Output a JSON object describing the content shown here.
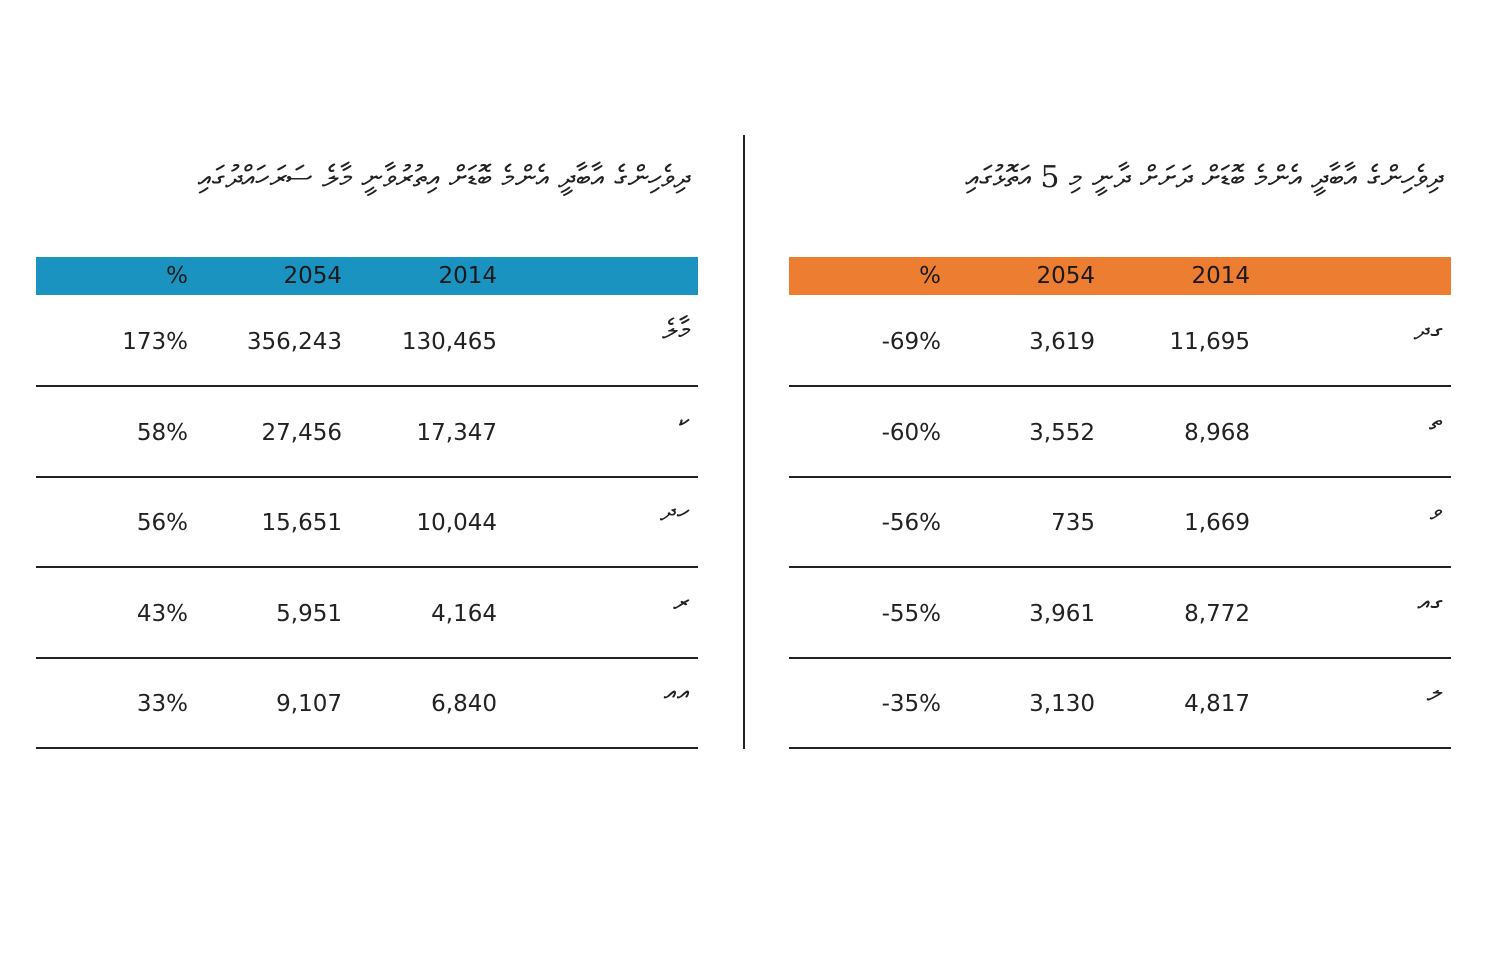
{
  "tables": [
    {
      "title": "ދިވެހިންގެ އާބާދީ އެންމެ ބޮޑަށް އިތުރުވާނީ މާލެ ސަރަހައްދުގައި",
      "header_color": "#1a93c1",
      "header": [
        "2014",
        "2054",
        "%"
      ],
      "rows": [
        [
          "މާލެ",
          "130,465",
          "356,243",
          "173%"
        ],
        [
          "ކ",
          "17,347",
          "27,456",
          "58%"
        ],
        [
          "ހދ",
          "10,044",
          "15,651",
          "56%"
        ],
        [
          "ރ",
          "4,164",
          "5,951",
          "43%"
        ],
        [
          "އއ",
          "6,840",
          "9,107",
          "33%"
        ]
      ]
    },
    {
      "title": "ދިވެހިންގެ އާބާދީ އެންމެ ބޮޑަށް ދަށަށް ދާނީ މި 5 އަތޮޅުގައި",
      "header_color": "#ed7d31",
      "header": [
        "2014",
        "2054",
        "%"
      ],
      "rows": [
        [
          "ގދ",
          "11,695",
          "3,619",
          "-69%"
        ],
        [
          "ތ",
          "8,968",
          "3,552",
          "-60%"
        ],
        [
          "ވ",
          "1,669",
          "735",
          "-56%"
        ],
        [
          "ގއ",
          "8,772",
          "3,961",
          "-55%"
        ],
        [
          "ލ",
          "4,817",
          "3,130",
          "-35%"
        ]
      ]
    }
  ]
}
